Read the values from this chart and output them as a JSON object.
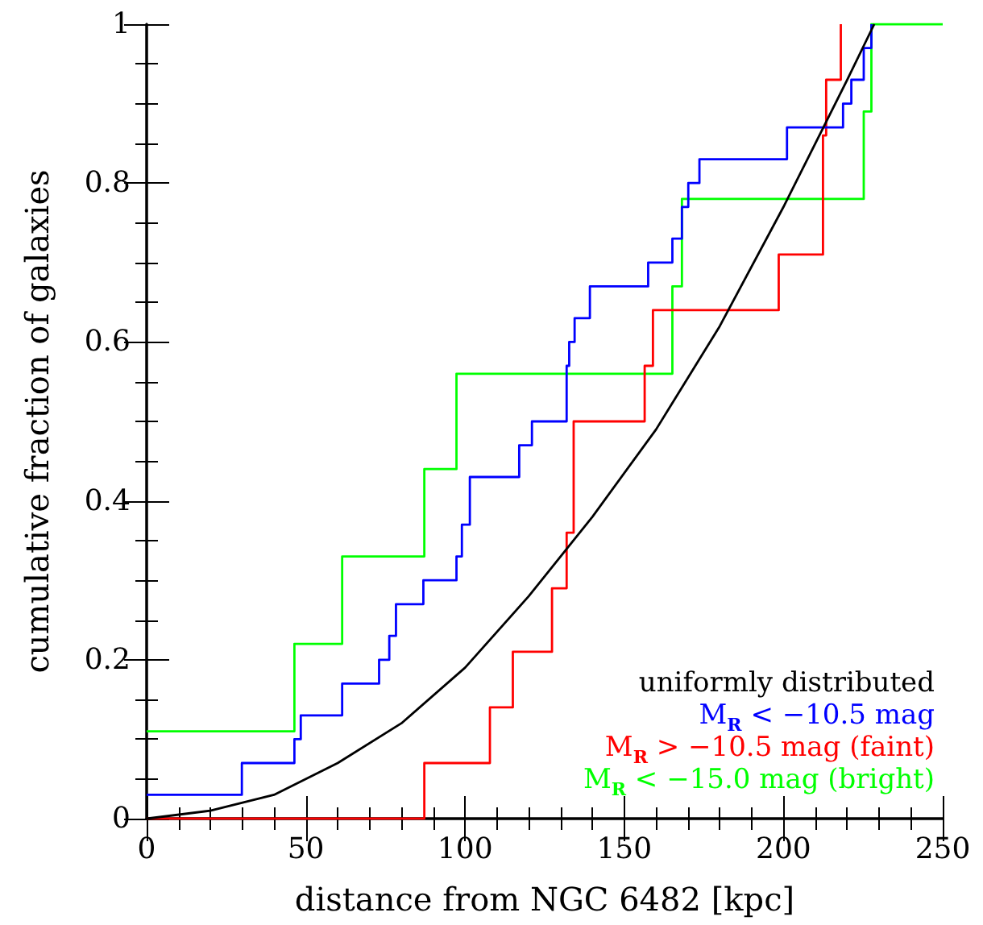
{
  "chart_data": {
    "type": "step",
    "xlabel": "distance from NGC 6482 [kpc]",
    "ylabel": "cumulative fraction of galaxies",
    "xlim": [
      0,
      250
    ],
    "xticks": [
      0,
      50,
      100,
      150,
      200,
      250
    ],
    "ylim": [
      0,
      1
    ],
    "yticks": [
      0,
      0.2,
      0.4,
      0.6,
      0.8,
      1
    ],
    "legend": "bottom right",
    "grid": false,
    "marker": "none",
    "line_style": "solid",
    "series": [
      {
        "name": "uniformly distributed",
        "type": "line",
        "color": "#000000",
        "x": [
          0,
          20,
          40,
          60,
          80,
          100,
          120,
          140,
          160,
          180,
          200,
          220,
          228.5
        ],
        "values": [
          0,
          0.01,
          0.03,
          0.07,
          0.12,
          0.19,
          0.28,
          0.38,
          0.49,
          0.62,
          0.77,
          0.93,
          1
        ]
      },
      {
        "name": "M$_{R}$ < −10.5 mag",
        "color": "#0000ff",
        "x": [
          0,
          29.9,
          46.4,
          48.4,
          61.4,
          73,
          76.2,
          78.3,
          86.9,
          97.3,
          99,
          101.5,
          117,
          121,
          131.9,
          132.7,
          134.4,
          139.2,
          157.5,
          165.1,
          168.1,
          170.1,
          173.6,
          201.1,
          218.7,
          221.3,
          225.2,
          227.6
        ],
        "values": [
          0.03,
          0.07,
          0.1,
          0.13,
          0.17,
          0.2,
          0.23,
          0.27,
          0.3,
          0.33,
          0.37,
          0.43,
          0.47,
          0.5,
          0.57,
          0.6,
          0.63,
          0.67,
          0.7,
          0.73,
          0.77,
          0.8,
          0.83,
          0.87,
          0.9,
          0.93,
          0.97,
          1
        ]
      },
      {
        "name": "M$_{R}$ > −10.5 mag (faint)",
        "color": "#ff0000",
        "x": [
          0,
          87.2,
          107.8,
          115,
          127.3,
          131.9,
          134.1,
          156.4,
          159,
          198.5,
          212.4,
          213.4,
          218
        ],
        "values": [
          0,
          0.07,
          0.14,
          0.21,
          0.29,
          0.36,
          0.5,
          0.57,
          0.64,
          0.71,
          0.86,
          0.93,
          1
        ]
      },
      {
        "name": "M$_{R}$ < −15.0 mag (bright)",
        "color": "#00ff00",
        "x": [
          0,
          46.4,
          61.4,
          87.2,
          97.3,
          165.1,
          168.1,
          225.2,
          227.6,
          250
        ],
        "values": [
          0.11,
          0.22,
          0.33,
          0.44,
          0.56,
          0.67,
          0.78,
          0.89,
          1,
          1
        ]
      }
    ]
  }
}
